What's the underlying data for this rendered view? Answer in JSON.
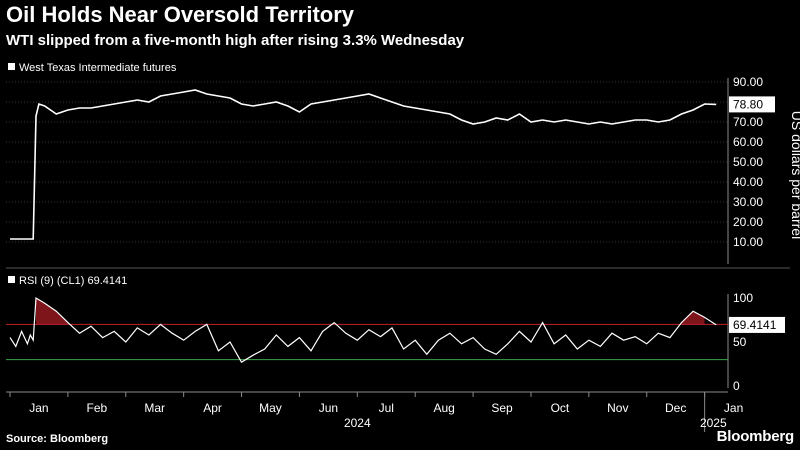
{
  "header": {
    "title": "Oil Holds Near Oversold Territory",
    "subtitle": "WTI slipped from a five-month high after rising 3.3% Wednesday"
  },
  "footer": {
    "source": "Source: Bloomberg",
    "brand": "Bloomberg"
  },
  "colors": {
    "background": "#000000",
    "line": "#ffffff",
    "overbought": "#c0202a",
    "oversold": "#3aa54a",
    "axis": "#8a8a8a"
  },
  "chart_data": [
    {
      "type": "line",
      "legend": "West Texas Intermediate futures",
      "ylabel": "US dollars per barrel",
      "ylim": [
        0,
        92
      ],
      "yticks": [
        10,
        20,
        30,
        40,
        50,
        60,
        70,
        80,
        90
      ],
      "ytick_labels": [
        "10.00",
        "20.00",
        "30.00",
        "40.00",
        "50.00",
        "60.00",
        "70.00",
        "80.00",
        "90.00"
      ],
      "last_value_label": "78.80",
      "grid": true,
      "x_months": [
        "Jan",
        "Feb",
        "Mar",
        "Apr",
        "May",
        "Jun",
        "Jul",
        "Aug",
        "Sep",
        "Oct",
        "Nov",
        "Dec",
        "Jan"
      ],
      "year_labels": [
        "2024",
        "2025"
      ],
      "series": [
        {
          "x_month": [
            0,
            0.2,
            0.4,
            0.45,
            0.5,
            0.6,
            0.8,
            1.0,
            1.2,
            1.4,
            1.6,
            1.8,
            2.0,
            2.2,
            2.4,
            2.6,
            2.8,
            3.0,
            3.2,
            3.4,
            3.6,
            3.8,
            4.0,
            4.2,
            4.4,
            4.6,
            4.8,
            5.0,
            5.2,
            5.4,
            5.6,
            5.8,
            6.0,
            6.2,
            6.4,
            6.6,
            6.8,
            7.0,
            7.2,
            7.4,
            7.6,
            7.8,
            8.0,
            8.2,
            8.4,
            8.6,
            8.8,
            9.0,
            9.2,
            9.4,
            9.6,
            9.8,
            10.0,
            10.2,
            10.4,
            10.6,
            10.8,
            11.0,
            11.2,
            11.4,
            11.6,
            11.8,
            12.0,
            12.2
          ],
          "values": [
            11.5,
            11.5,
            11.5,
            73,
            79,
            78,
            74,
            76,
            77,
            77,
            78,
            79,
            80,
            81,
            80,
            83,
            84,
            85,
            86,
            84,
            83,
            82,
            79,
            78,
            79,
            80,
            78,
            75,
            79,
            80,
            81,
            82,
            83,
            84,
            82,
            80,
            78,
            77,
            76,
            75,
            74,
            71,
            69,
            70,
            72,
            71,
            74,
            70,
            71,
            70,
            71,
            70,
            69,
            70,
            69,
            70,
            71,
            71,
            70,
            71,
            74,
            76,
            79,
            78.8
          ]
        }
      ]
    },
    {
      "type": "line",
      "legend": "RSI (9) (CL1) 69.4141",
      "ylim": [
        0,
        100
      ],
      "yticks": [
        0,
        50,
        100
      ],
      "ytick_labels": [
        "0",
        "50",
        "100"
      ],
      "overbought": 70,
      "oversold": 30,
      "last_value_label": "69.4141",
      "series": [
        {
          "x_month": [
            0,
            0.1,
            0.2,
            0.3,
            0.35,
            0.4,
            0.45,
            0.6,
            0.8,
            1.0,
            1.2,
            1.4,
            1.6,
            1.8,
            2.0,
            2.2,
            2.4,
            2.6,
            2.8,
            3.0,
            3.2,
            3.4,
            3.6,
            3.8,
            4.0,
            4.2,
            4.4,
            4.6,
            4.8,
            5.0,
            5.2,
            5.4,
            5.6,
            5.8,
            6.0,
            6.2,
            6.4,
            6.6,
            6.8,
            7.0,
            7.2,
            7.4,
            7.6,
            7.8,
            8.0,
            8.2,
            8.4,
            8.6,
            8.8,
            9.0,
            9.2,
            9.4,
            9.6,
            9.8,
            10.0,
            10.2,
            10.4,
            10.6,
            10.8,
            11.0,
            11.2,
            11.4,
            11.6,
            11.8,
            12.0,
            12.2
          ],
          "values": [
            55,
            45,
            62,
            48,
            58,
            52,
            100,
            94,
            85,
            72,
            60,
            68,
            55,
            62,
            50,
            66,
            58,
            70,
            60,
            52,
            62,
            70,
            40,
            50,
            27,
            35,
            42,
            58,
            45,
            55,
            40,
            62,
            72,
            60,
            52,
            64,
            56,
            66,
            42,
            52,
            36,
            52,
            60,
            48,
            55,
            42,
            36,
            48,
            62,
            50,
            72,
            48,
            58,
            42,
            52,
            45,
            60,
            52,
            56,
            48,
            60,
            55,
            72,
            85,
            78,
            69.4
          ]
        }
      ]
    }
  ]
}
